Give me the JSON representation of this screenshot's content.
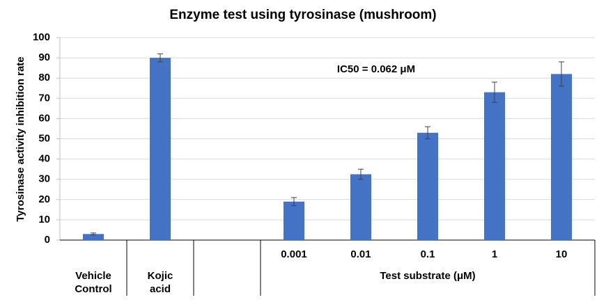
{
  "chart_data": {
    "type": "bar",
    "title": "Enzyme test using tyrosinase (mushroom)",
    "y_label": "Tyrosinase activity inhibition rate",
    "annotation": "IC50 = 0.062 μM",
    "categories": [
      null,
      null,
      null,
      "0.001",
      "0.01",
      "0.1",
      "1",
      "10"
    ],
    "category_groups": [
      {
        "label": "Vehicle Control",
        "count": 1
      },
      {
        "label": "Kojic acid",
        "count": 1
      },
      {
        "label": null,
        "count": 1
      },
      {
        "label": "Test substrate (μM)",
        "count": 5
      }
    ],
    "series": [
      {
        "color": "#4472c4",
        "values": [
          3,
          90,
          null,
          19,
          32.5,
          53,
          73,
          82
        ],
        "errors": [
          0.5,
          2,
          null,
          2,
          2.5,
          3,
          5,
          6
        ]
      }
    ],
    "ylim": [
      0,
      100
    ],
    "yticks": [
      0,
      10,
      20,
      30,
      40,
      50,
      60,
      70,
      80,
      90,
      100
    ],
    "grid": true
  }
}
